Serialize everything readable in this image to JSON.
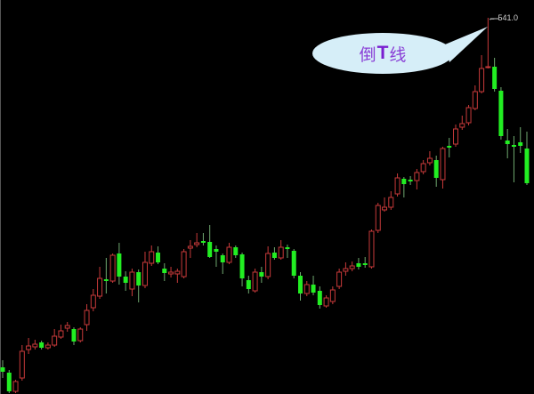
{
  "chart_data": {
    "type": "candlestick",
    "title": "",
    "xlabel": "",
    "ylabel": "",
    "grid": false,
    "up_color": "#c83a3a",
    "down_color": "#22ee22",
    "background": "#000000",
    "ylim": [
      118,
      561
    ],
    "columns": [
      "open",
      "high",
      "low",
      "close"
    ],
    "candles": [
      [
        148,
        156,
        136,
        143
      ],
      [
        142,
        145,
        119,
        121
      ],
      [
        121,
        134,
        119,
        132
      ],
      [
        136,
        173,
        133,
        166
      ],
      [
        168,
        181,
        163,
        172
      ],
      [
        171,
        179,
        168,
        174
      ],
      [
        176,
        178,
        168,
        170
      ],
      [
        170,
        176,
        168,
        173
      ],
      [
        173,
        191,
        171,
        183
      ],
      [
        182,
        196,
        180,
        189
      ],
      [
        192,
        199,
        188,
        195
      ],
      [
        191,
        193,
        173,
        177
      ],
      [
        178,
        193,
        176,
        191
      ],
      [
        196,
        219,
        189,
        212
      ],
      [
        215,
        236,
        211,
        229
      ],
      [
        228,
        261,
        225,
        248
      ],
      [
        247,
        271,
        231,
        245
      ],
      [
        245,
        276,
        243,
        274
      ],
      [
        276,
        288,
        241,
        250
      ],
      [
        250,
        256,
        234,
        243
      ],
      [
        236,
        259,
        228,
        255
      ],
      [
        255,
        258,
        221,
        240
      ],
      [
        240,
        278,
        237,
        266
      ],
      [
        265,
        285,
        262,
        278
      ],
      [
        277,
        284,
        264,
        266
      ],
      [
        259,
        265,
        245,
        254
      ],
      [
        253,
        261,
        249,
        255
      ],
      [
        253,
        259,
        243,
        256
      ],
      [
        250,
        281,
        248,
        278
      ],
      [
        282,
        291,
        271,
        284
      ],
      [
        286,
        299,
        283,
        288
      ],
      [
        290,
        299,
        285,
        288
      ],
      [
        289,
        308,
        271,
        272
      ],
      [
        281,
        285,
        261,
        278
      ],
      [
        274,
        276,
        253,
        266
      ],
      [
        266,
        288,
        264,
        283
      ],
      [
        283,
        285,
        271,
        274
      ],
      [
        275,
        277,
        239,
        248
      ],
      [
        246,
        251,
        231,
        236
      ],
      [
        234,
        259,
        232,
        255
      ],
      [
        255,
        261,
        243,
        250
      ],
      [
        250,
        284,
        247,
        276
      ],
      [
        277,
        283,
        269,
        271
      ],
      [
        271,
        291,
        269,
        283
      ],
      [
        283,
        286,
        271,
        281
      ],
      [
        279,
        281,
        248,
        251
      ],
      [
        251,
        255,
        223,
        231
      ],
      [
        231,
        245,
        228,
        241
      ],
      [
        241,
        251,
        229,
        232
      ],
      [
        234,
        239,
        214,
        218
      ],
      [
        217,
        229,
        215,
        226
      ],
      [
        222,
        239,
        219,
        235
      ],
      [
        239,
        259,
        236,
        255
      ],
      [
        256,
        266,
        251,
        259
      ],
      [
        259,
        267,
        256,
        262
      ],
      [
        265,
        271,
        258,
        261
      ],
      [
        265,
        272,
        260,
        263
      ],
      [
        261,
        303,
        259,
        301
      ],
      [
        302,
        333,
        299,
        330
      ],
      [
        325,
        339,
        323,
        328
      ],
      [
        328,
        346,
        325,
        339
      ],
      [
        343,
        366,
        340,
        361
      ],
      [
        360,
        362,
        339,
        354
      ],
      [
        359,
        363,
        353,
        357
      ],
      [
        358,
        371,
        348,
        367
      ],
      [
        368,
        381,
        365,
        377
      ],
      [
        378,
        391,
        375,
        383
      ],
      [
        381,
        386,
        351,
        361
      ],
      [
        359,
        396,
        349,
        394
      ],
      [
        397,
        406,
        384,
        395
      ],
      [
        399,
        421,
        396,
        416
      ],
      [
        418,
        431,
        415,
        422
      ],
      [
        423,
        443,
        420,
        440
      ],
      [
        439,
        465,
        437,
        458
      ],
      [
        458,
        499,
        456,
        484
      ],
      [
        485,
        541,
        484,
        486
      ],
      [
        486,
        496,
        458,
        461
      ],
      [
        459,
        463,
        404,
        408
      ],
      [
        403,
        416,
        383,
        399
      ],
      [
        398,
        408,
        356,
        396
      ],
      [
        401,
        418,
        389,
        397
      ],
      [
        394,
        413,
        353,
        355
      ]
    ],
    "annotations": [
      {
        "label": "541.0",
        "arrow": "←",
        "candle": 76
      },
      {
        "callout": [
          "倒",
          "T",
          "线"
        ],
        "candle": 76,
        "fill": "#d6eef8",
        "text_color": "#8a3fd6"
      }
    ]
  }
}
